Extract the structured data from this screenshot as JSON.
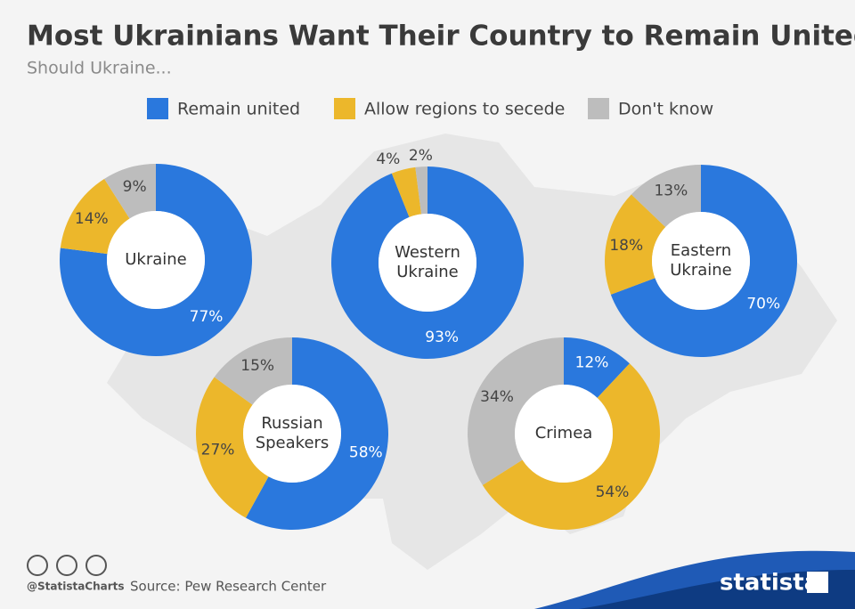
{
  "header": {
    "title": "Most Ukrainians Want Their Country to Remain United",
    "subtitle": "Should Ukraine..."
  },
  "chart_data": [
    {
      "type": "donut",
      "title": "Ukraine",
      "categories": [
        "Remain united",
        "Allow regions to secede",
        "Don't know"
      ],
      "colors": [
        "#2a78dd",
        "#ecb72b",
        "#bdbdbd"
      ],
      "values": [
        77,
        14,
        9
      ],
      "value_labels": [
        "77%",
        "14%",
        "9%"
      ]
    },
    {
      "type": "donut",
      "title": "Western Ukraine",
      "categories": [
        "Remain united",
        "Allow regions to secede",
        "Don't know"
      ],
      "colors": [
        "#2a78dd",
        "#ecb72b",
        "#bdbdbd"
      ],
      "values": [
        93,
        4,
        2
      ],
      "value_labels": [
        "93%",
        "4%",
        "2%"
      ]
    },
    {
      "type": "donut",
      "title": "Eastern Ukraine",
      "categories": [
        "Remain united",
        "Allow regions to secede",
        "Don't know"
      ],
      "colors": [
        "#2a78dd",
        "#ecb72b",
        "#bdbdbd"
      ],
      "values": [
        70,
        18,
        13
      ],
      "value_labels": [
        "70%",
        "18%",
        "13%"
      ]
    },
    {
      "type": "donut",
      "title": "Russian Speakers",
      "categories": [
        "Remain united",
        "Allow regions to secede",
        "Don't know"
      ],
      "colors": [
        "#2a78dd",
        "#ecb72b",
        "#bdbdbd"
      ],
      "values": [
        58,
        27,
        15
      ],
      "value_labels": [
        "58%",
        "27%",
        "15%"
      ]
    },
    {
      "type": "donut",
      "title": "Crimea",
      "categories": [
        "Remain united",
        "Allow regions to secede",
        "Don't know"
      ],
      "colors": [
        "#2a78dd",
        "#ecb72b",
        "#bdbdbd"
      ],
      "values": [
        12,
        54,
        34
      ],
      "value_labels": [
        "12%",
        "54%",
        "34%"
      ]
    }
  ],
  "footer": {
    "handle": "@StatistaCharts",
    "source": "Source: Pew Research Center",
    "brand": "statista"
  }
}
